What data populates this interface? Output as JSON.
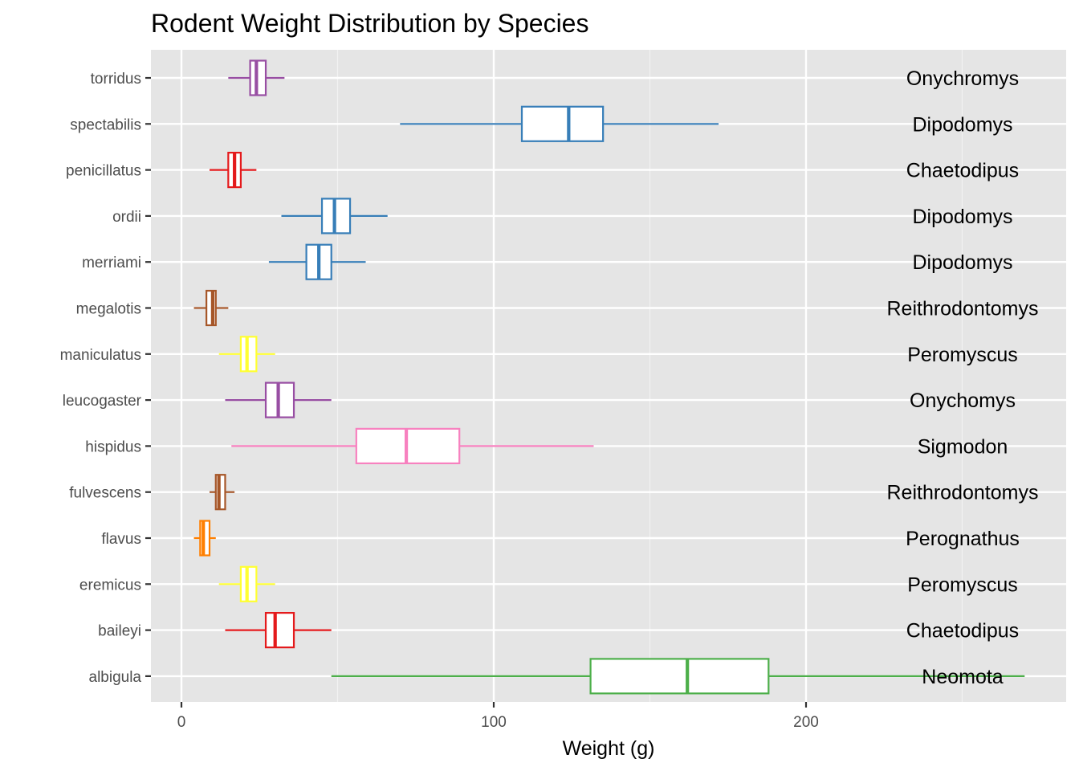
{
  "chart_data": {
    "type": "boxplot",
    "orientation": "horizontal",
    "title": "Rodent Weight Distribution by Species",
    "xlabel": "Weight (g)",
    "ylabel": "",
    "xlim": [
      -10,
      282
    ],
    "xticks": [
      0,
      100,
      200
    ],
    "grid": true,
    "legend": "none",
    "background": "#e5e5e5",
    "series": [
      {
        "species": "torridus",
        "genus": "Onychromys",
        "color": "#984ea3",
        "whisker_low": 15,
        "q1": 22,
        "median": 24,
        "q3": 27,
        "whisker_high": 33
      },
      {
        "species": "spectabilis",
        "genus": "Dipodomys",
        "color": "#377eb8",
        "whisker_low": 70,
        "q1": 109,
        "median": 124,
        "q3": 135,
        "whisker_high": 172
      },
      {
        "species": "penicillatus",
        "genus": "Chaetodipus",
        "color": "#e41a1c",
        "whisker_low": 9,
        "q1": 15,
        "median": 17,
        "q3": 19,
        "whisker_high": 24
      },
      {
        "species": "ordii",
        "genus": "Dipodomys",
        "color": "#377eb8",
        "whisker_low": 32,
        "q1": 45,
        "median": 49,
        "q3": 54,
        "whisker_high": 66
      },
      {
        "species": "merriami",
        "genus": "Dipodomys",
        "color": "#377eb8",
        "whisker_low": 28,
        "q1": 40,
        "median": 44,
        "q3": 48,
        "whisker_high": 59
      },
      {
        "species": "megalotis",
        "genus": "Reithrodontomys",
        "color": "#a65628",
        "whisker_low": 4,
        "q1": 8,
        "median": 10,
        "q3": 11,
        "whisker_high": 15
      },
      {
        "species": "maniculatus",
        "genus": "Peromyscus",
        "color": "#ffff33",
        "whisker_low": 12,
        "q1": 19,
        "median": 21,
        "q3": 24,
        "whisker_high": 30
      },
      {
        "species": "leucogaster",
        "genus": "Onychomys",
        "color": "#984ea3",
        "whisker_low": 14,
        "q1": 27,
        "median": 31,
        "q3": 36,
        "whisker_high": 48
      },
      {
        "species": "hispidus",
        "genus": "Sigmodon",
        "color": "#f781bf",
        "whisker_low": 16,
        "q1": 56,
        "median": 72,
        "q3": 89,
        "whisker_high": 132
      },
      {
        "species": "fulvescens",
        "genus": "Reithrodontomys",
        "color": "#a65628",
        "whisker_low": 9,
        "q1": 11,
        "median": 12,
        "q3": 14,
        "whisker_high": 17
      },
      {
        "species": "flavus",
        "genus": "Perognathus",
        "color": "#ff7f00",
        "whisker_low": 4,
        "q1": 6,
        "median": 7,
        "q3": 9,
        "whisker_high": 11
      },
      {
        "species": "eremicus",
        "genus": "Peromyscus",
        "color": "#ffff33",
        "whisker_low": 12,
        "q1": 19,
        "median": 21,
        "q3": 24,
        "whisker_high": 30
      },
      {
        "species": "baileyi",
        "genus": "Chaetodipus",
        "color": "#e41a1c",
        "whisker_low": 14,
        "q1": 27,
        "median": 30,
        "q3": 36,
        "whisker_high": 48
      },
      {
        "species": "albigula",
        "genus": "Neomota",
        "color": "#4daf4a",
        "whisker_low": 48,
        "q1": 131,
        "median": 162,
        "q3": 188,
        "whisker_high": 270
      }
    ]
  }
}
